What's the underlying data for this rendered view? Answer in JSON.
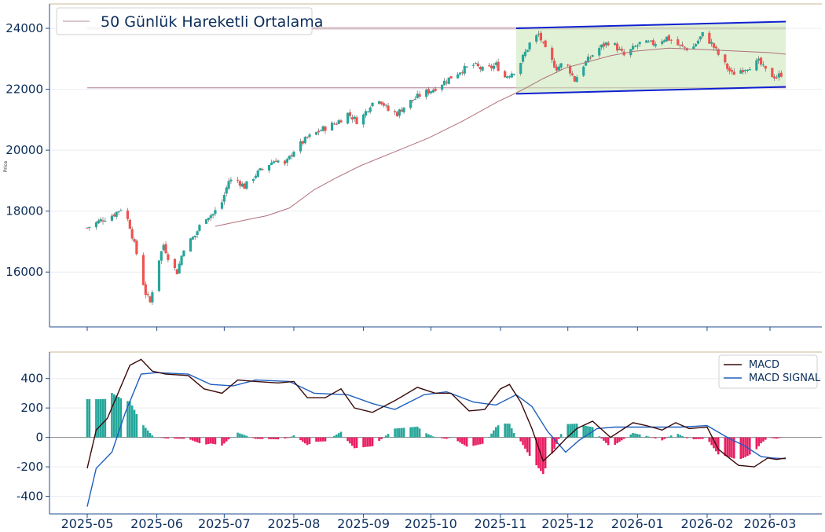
{
  "chart_data": [
    {
      "type": "candlestick",
      "ylabel": "Price",
      "ylim": [
        14200,
        24800
      ],
      "yticks": [
        16000,
        18000,
        20000,
        22000,
        24000
      ],
      "grid": true,
      "legend": {
        "placement": "top-left",
        "entries": [
          "50 Günlük Hareketli Ortalama"
        ]
      },
      "colors": {
        "up": "#26a69a",
        "down": "#ef5350",
        "ma": "#b0707a",
        "channel_line": "#1020d0",
        "channel_fill": "#c8e6b4",
        "hline": "#c9a0b0"
      },
      "x_start": "2025-05-01",
      "x_end": "2026-03-08",
      "hlines": [
        24000,
        22050
      ],
      "channel": {
        "start": "2025-11-08",
        "end": "2026-03-08",
        "upper": [
          24000,
          24220
        ],
        "lower": [
          21850,
          22080
        ]
      },
      "anchors": [
        [
          "2025-05-01",
          17450
        ],
        [
          "2025-05-07",
          17700
        ],
        [
          "2025-05-13",
          17900
        ],
        [
          "2025-05-17",
          18150
        ],
        [
          "2025-05-20",
          17500
        ],
        [
          "2025-05-23",
          16600
        ],
        [
          "2025-05-27",
          15300
        ],
        [
          "2025-05-29",
          15000
        ],
        [
          "2025-06-01",
          16200
        ],
        [
          "2025-06-04",
          16900
        ],
        [
          "2025-06-07",
          16300
        ],
        [
          "2025-06-10",
          16000
        ],
        [
          "2025-06-13",
          16800
        ],
        [
          "2025-06-18",
          17200
        ],
        [
          "2025-06-22",
          17800
        ],
        [
          "2025-06-26",
          17900
        ],
        [
          "2025-06-30",
          18300
        ],
        [
          "2025-07-03",
          19000
        ],
        [
          "2025-07-07",
          19000
        ],
        [
          "2025-07-10",
          18800
        ],
        [
          "2025-07-15",
          19200
        ],
        [
          "2025-07-20",
          19500
        ],
        [
          "2025-07-24",
          19700
        ],
        [
          "2025-07-28",
          19500
        ],
        [
          "2025-08-01",
          20000
        ],
        [
          "2025-08-07",
          20400
        ],
        [
          "2025-08-14",
          20700
        ],
        [
          "2025-08-20",
          20900
        ],
        [
          "2025-08-25",
          21200
        ],
        [
          "2025-08-30",
          20900
        ],
        [
          "2025-09-04",
          21500
        ],
        [
          "2025-09-08",
          21700
        ],
        [
          "2025-09-12",
          21300
        ],
        [
          "2025-09-16",
          21200
        ],
        [
          "2025-09-20",
          21500
        ],
        [
          "2025-09-26",
          21800
        ],
        [
          "2025-10-02",
          22000
        ],
        [
          "2025-10-08",
          22300
        ],
        [
          "2025-10-14",
          22600
        ],
        [
          "2025-10-20",
          22800
        ],
        [
          "2025-10-25",
          22600
        ],
        [
          "2025-10-30",
          22800
        ],
        [
          "2025-11-03",
          22400
        ],
        [
          "2025-11-07",
          22600
        ],
        [
          "2025-11-10",
          22900
        ],
        [
          "2025-11-14",
          23500
        ],
        [
          "2025-11-18",
          23800
        ],
        [
          "2025-11-22",
          23100
        ],
        [
          "2025-11-26",
          22700
        ],
        [
          "2025-11-30",
          22900
        ],
        [
          "2025-12-04",
          22300
        ],
        [
          "2025-12-08",
          22800
        ],
        [
          "2025-12-14",
          23300
        ],
        [
          "2025-12-20",
          23600
        ],
        [
          "2025-12-26",
          23100
        ],
        [
          "2026-01-02",
          23500
        ],
        [
          "2026-01-08",
          23500
        ],
        [
          "2026-01-14",
          23700
        ],
        [
          "2026-01-20",
          23400
        ],
        [
          "2026-01-25",
          23300
        ],
        [
          "2026-01-30",
          23800
        ],
        [
          "2026-02-03",
          23500
        ],
        [
          "2026-02-08",
          22900
        ],
        [
          "2026-02-12",
          22500
        ],
        [
          "2026-02-18",
          22700
        ],
        [
          "2026-02-24",
          22900
        ],
        [
          "2026-02-28",
          22500
        ],
        [
          "2026-03-04",
          22400
        ],
        [
          "2026-03-08",
          22600
        ]
      ],
      "ma50": [
        [
          "2025-06-27",
          17500
        ],
        [
          "2025-07-10",
          17700
        ],
        [
          "2025-07-20",
          17850
        ],
        [
          "2025-07-30",
          18100
        ],
        [
          "2025-08-10",
          18700
        ],
        [
          "2025-08-20",
          19100
        ],
        [
          "2025-08-31",
          19500
        ],
        [
          "2025-09-15",
          19950
        ],
        [
          "2025-09-30",
          20400
        ],
        [
          "2025-10-15",
          20950
        ],
        [
          "2025-10-31",
          21600
        ],
        [
          "2025-11-10",
          21950
        ],
        [
          "2025-11-20",
          22350
        ],
        [
          "2025-11-30",
          22700
        ],
        [
          "2025-12-10",
          22900
        ],
        [
          "2025-12-20",
          23100
        ],
        [
          "2025-12-31",
          23250
        ],
        [
          "2026-01-15",
          23350
        ],
        [
          "2026-01-31",
          23300
        ],
        [
          "2026-02-15",
          23250
        ],
        [
          "2026-03-01",
          23200
        ],
        [
          "2026-03-08",
          23150
        ]
      ]
    },
    {
      "type": "line+bar",
      "ylim": [
        -520,
        580
      ],
      "yticks": [
        -400,
        -200,
        0,
        200,
        400
      ],
      "grid": true,
      "legend": {
        "placement": "top-right",
        "entries": [
          "MACD",
          "MACD SIGNAL"
        ]
      },
      "colors": {
        "macd": "#3b0a0a",
        "signal": "#1f5fbf",
        "hist_pos": "#26a69a",
        "hist_neg": "#e91e63"
      },
      "macd": [
        [
          "2025-05-01",
          -210
        ],
        [
          "2025-05-05",
          50
        ],
        [
          "2025-05-10",
          130
        ],
        [
          "2025-05-15",
          310
        ],
        [
          "2025-05-20",
          490
        ],
        [
          "2025-05-25",
          530
        ],
        [
          "2025-05-30",
          450
        ],
        [
          "2025-06-05",
          430
        ],
        [
          "2025-06-15",
          420
        ],
        [
          "2025-06-22",
          330
        ],
        [
          "2025-06-30",
          300
        ],
        [
          "2025-07-07",
          390
        ],
        [
          "2025-07-15",
          380
        ],
        [
          "2025-07-25",
          370
        ],
        [
          "2025-08-01",
          380
        ],
        [
          "2025-08-07",
          270
        ],
        [
          "2025-08-15",
          270
        ],
        [
          "2025-08-22",
          330
        ],
        [
          "2025-08-28",
          200
        ],
        [
          "2025-09-05",
          170
        ],
        [
          "2025-09-15",
          250
        ],
        [
          "2025-09-25",
          340
        ],
        [
          "2025-10-03",
          300
        ],
        [
          "2025-10-10",
          300
        ],
        [
          "2025-10-18",
          180
        ],
        [
          "2025-10-25",
          190
        ],
        [
          "2025-11-01",
          330
        ],
        [
          "2025-11-05",
          360
        ],
        [
          "2025-11-10",
          240
        ],
        [
          "2025-11-15",
          60
        ],
        [
          "2025-11-20",
          -160
        ],
        [
          "2025-11-25",
          -90
        ],
        [
          "2025-11-30",
          -10
        ],
        [
          "2025-12-05",
          60
        ],
        [
          "2025-12-12",
          110
        ],
        [
          "2025-12-20",
          0
        ],
        [
          "2025-12-30",
          100
        ],
        [
          "2026-01-05",
          80
        ],
        [
          "2026-01-12",
          50
        ],
        [
          "2026-01-18",
          100
        ],
        [
          "2026-01-24",
          60
        ],
        [
          "2026-02-01",
          70
        ],
        [
          "2026-02-06",
          -80
        ],
        [
          "2026-02-10",
          -130
        ],
        [
          "2026-02-15",
          -190
        ],
        [
          "2026-02-22",
          -200
        ],
        [
          "2026-02-28",
          -140
        ],
        [
          "2026-03-04",
          -150
        ],
        [
          "2026-03-08",
          -140
        ]
      ],
      "signal": [
        [
          "2025-05-01",
          -470
        ],
        [
          "2025-05-05",
          -210
        ],
        [
          "2025-05-12",
          -100
        ],
        [
          "2025-05-18",
          170
        ],
        [
          "2025-05-25",
          430
        ],
        [
          "2025-06-01",
          440
        ],
        [
          "2025-06-15",
          430
        ],
        [
          "2025-06-25",
          360
        ],
        [
          "2025-07-05",
          350
        ],
        [
          "2025-07-15",
          390
        ],
        [
          "2025-07-30",
          380
        ],
        [
          "2025-08-10",
          300
        ],
        [
          "2025-08-25",
          290
        ],
        [
          "2025-09-05",
          230
        ],
        [
          "2025-09-15",
          190
        ],
        [
          "2025-09-28",
          290
        ],
        [
          "2025-10-08",
          310
        ],
        [
          "2025-10-20",
          240
        ],
        [
          "2025-10-30",
          220
        ],
        [
          "2025-11-08",
          290
        ],
        [
          "2025-11-15",
          210
        ],
        [
          "2025-11-22",
          40
        ],
        [
          "2025-11-30",
          -100
        ],
        [
          "2025-12-06",
          -20
        ],
        [
          "2025-12-14",
          60
        ],
        [
          "2025-12-22",
          70
        ],
        [
          "2026-01-05",
          70
        ],
        [
          "2026-01-20",
          70
        ],
        [
          "2026-02-01",
          80
        ],
        [
          "2026-02-10",
          0
        ],
        [
          "2026-02-18",
          -60
        ],
        [
          "2026-02-25",
          -130
        ],
        [
          "2026-03-02",
          -140
        ],
        [
          "2026-03-08",
          -145
        ]
      ]
    }
  ],
  "xaxis": {
    "ticks": [
      {
        "date": "2025-05-01",
        "label": "2025-05"
      },
      {
        "date": "2025-06-01",
        "label": "2025-06"
      },
      {
        "date": "2025-07-01",
        "label": "2025-07"
      },
      {
        "date": "2025-08-01",
        "label": "2025-08"
      },
      {
        "date": "2025-09-01",
        "label": "2025-09"
      },
      {
        "date": "2025-10-01",
        "label": "2025-10"
      },
      {
        "date": "2025-11-01",
        "label": "2025-11"
      },
      {
        "date": "2025-12-01",
        "label": "2025-12"
      },
      {
        "date": "2026-01-01",
        "label": "2026-01"
      },
      {
        "date": "2026-02-01",
        "label": "2026-02"
      },
      {
        "date": "2026-03-01",
        "label": "2026-03"
      }
    ]
  }
}
